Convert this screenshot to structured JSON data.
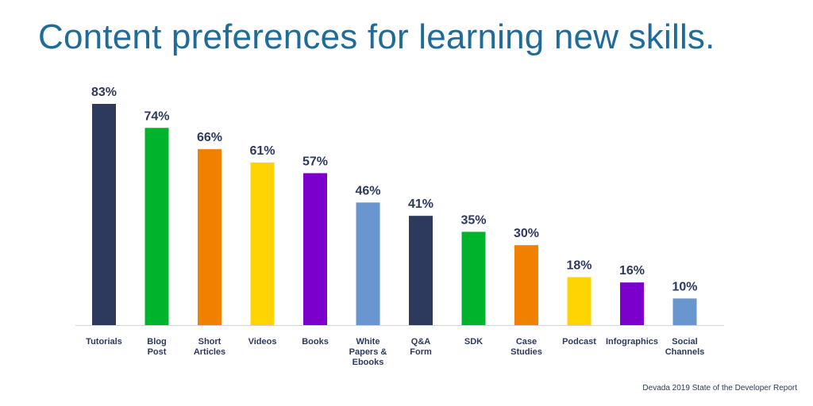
{
  "chart_data": {
    "type": "bar",
    "title": "Content preferences for learning new skills.",
    "source": "Devada 2019 State of the Developer Report",
    "xlabel": "",
    "ylabel": "",
    "grid": false,
    "categories": [
      [
        "Tutorials"
      ],
      [
        "Blog",
        "Post"
      ],
      [
        "Short",
        "Articles"
      ],
      [
        "Videos"
      ],
      [
        "Books"
      ],
      [
        "White",
        "Papers &",
        "Ebooks"
      ],
      [
        "Q&A",
        "Form"
      ],
      [
        "SDK"
      ],
      [
        "Case",
        "Studies"
      ],
      [
        "Podcast"
      ],
      [
        "Infographics"
      ],
      [
        "Social",
        "Channels"
      ]
    ],
    "values": [
      83,
      74,
      66,
      61,
      57,
      46,
      41,
      35,
      30,
      18,
      16,
      10
    ],
    "value_labels": [
      "83%",
      "74%",
      "66%",
      "61%",
      "57%",
      "46%",
      "41%",
      "35%",
      "30%",
      "18%",
      "16%",
      "10%"
    ],
    "colors": [
      "#2d3a5e",
      "#00b32c",
      "#f08000",
      "#ffd400",
      "#7b00cc",
      "#6a96d0",
      "#2d3a5e",
      "#00b32c",
      "#f08000",
      "#ffd400",
      "#7b00cc",
      "#6a96d0"
    ],
    "ylim": [
      0,
      83
    ]
  }
}
